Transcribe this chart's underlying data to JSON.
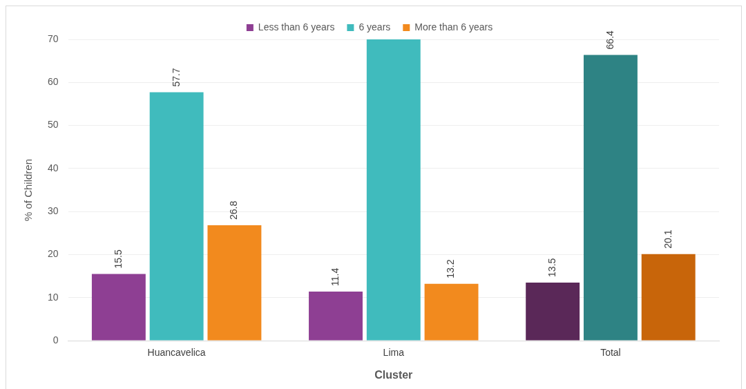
{
  "chart_data": {
    "type": "bar",
    "xlabel": "Cluster",
    "ylabel": "% of Children",
    "categories": [
      "Huancavelica",
      "Lima",
      "Total"
    ],
    "series": [
      {
        "name": "Less than 6 years",
        "color": "#8e3f93",
        "colors": [
          "#8e3f93",
          "#8e3f93",
          "#5a2858"
        ],
        "values": [
          15.5,
          11.4,
          13.5
        ],
        "value_labels": [
          "15.5",
          "11.4",
          "13.5"
        ]
      },
      {
        "name": "6 years",
        "color": "#40bbbd",
        "colors": [
          "#40bbbd",
          "#40bbbd",
          "#2e8384"
        ],
        "values": [
          57.7,
          70,
          66.4
        ],
        "value_labels": [
          "57.7",
          null,
          "66.4"
        ]
      },
      {
        "name": "More than 6 years",
        "color": "#f28a1e",
        "colors": [
          "#f28a1e",
          "#f28a1e",
          "#c8650a"
        ],
        "values": [
          26.8,
          13.2,
          20.1
        ],
        "value_labels": [
          "26.8",
          "13.2",
          "20.1"
        ]
      }
    ],
    "ylim": [
      0,
      70
    ],
    "yticks": [
      0,
      10,
      20,
      30,
      40,
      50,
      60,
      70
    ],
    "grid": "y",
    "legend": "top"
  }
}
